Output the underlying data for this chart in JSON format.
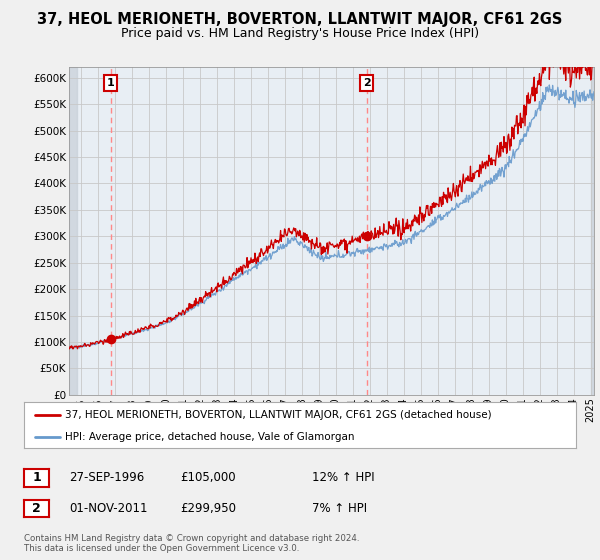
{
  "title": "37, HEOL MERIONETH, BOVERTON, LLANTWIT MAJOR, CF61 2GS",
  "subtitle": "Price paid vs. HM Land Registry's House Price Index (HPI)",
  "ylabel_ticks": [
    "£0",
    "£50K",
    "£100K",
    "£150K",
    "£200K",
    "£250K",
    "£300K",
    "£350K",
    "£400K",
    "£450K",
    "£500K",
    "£550K",
    "£600K"
  ],
  "ylim": [
    0,
    620000
  ],
  "xlim_start": 1994.3,
  "xlim_end": 2025.2,
  "xticks": [
    1995,
    1996,
    1997,
    1998,
    1999,
    2000,
    2001,
    2002,
    2003,
    2004,
    2005,
    2006,
    2007,
    2008,
    2009,
    2010,
    2011,
    2012,
    2013,
    2014,
    2015,
    2016,
    2017,
    2018,
    2019,
    2020,
    2021,
    2022,
    2023,
    2024,
    2025
  ],
  "grid_color": "#c8c8c8",
  "bg_color": "#f0f0f0",
  "plot_bg": "#e8eef4",
  "red_line_color": "#cc0000",
  "blue_line_color": "#6699cc",
  "dashed_line_color": "#ff8888",
  "marker_color": "#cc0000",
  "purchase1_year": 1996.75,
  "purchase1_price": 105000,
  "purchase2_year": 2011.83,
  "purchase2_price": 299950,
  "legend_line1": "37, HEOL MERIONETH, BOVERTON, LLANTWIT MAJOR, CF61 2GS (detached house)",
  "legend_line2": "HPI: Average price, detached house, Vale of Glamorgan",
  "annotation1_label": "1",
  "annotation2_label": "2",
  "info1_num": "1",
  "info1_date": "27-SEP-1996",
  "info1_price": "£105,000",
  "info1_hpi": "12% ↑ HPI",
  "info2_num": "2",
  "info2_date": "01-NOV-2011",
  "info2_price": "£299,950",
  "info2_hpi": "7% ↑ HPI",
  "footer": "Contains HM Land Registry data © Crown copyright and database right 2024.\nThis data is licensed under the Open Government Licence v3.0.",
  "title_fontsize": 10.5,
  "subtitle_fontsize": 9
}
